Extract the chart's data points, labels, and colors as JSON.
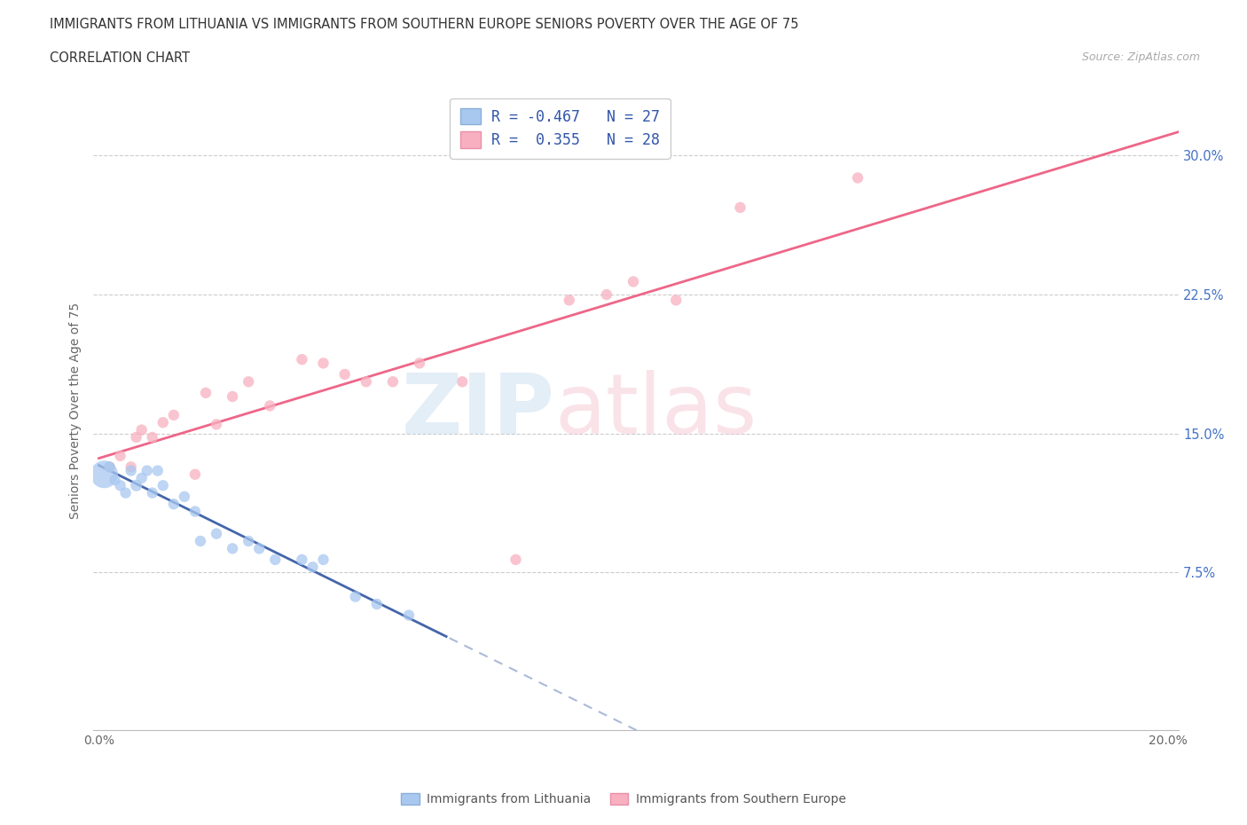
{
  "title": "IMMIGRANTS FROM LITHUANIA VS IMMIGRANTS FROM SOUTHERN EUROPE SENIORS POVERTY OVER THE AGE OF 75",
  "subtitle": "CORRELATION CHART",
  "source": "Source: ZipAtlas.com",
  "ylabel": "Seniors Poverty Over the Age of 75",
  "xlim": [
    -0.001,
    0.202
  ],
  "ylim": [
    -0.01,
    0.335
  ],
  "R1": -0.467,
  "N1": 27,
  "R2": 0.355,
  "N2": 28,
  "color1": "#a8c8f0",
  "color2": "#f8b0c0",
  "trend1_color": "#4466aa",
  "trend2_color": "#ee6688",
  "label1": "Immigrants from Lithuania",
  "label2": "Immigrants from Southern Europe",
  "blue_x": [
    0.001,
    0.002,
    0.003,
    0.004,
    0.005,
    0.006,
    0.007,
    0.008,
    0.009,
    0.01,
    0.011,
    0.012,
    0.014,
    0.016,
    0.018,
    0.019,
    0.022,
    0.025,
    0.028,
    0.03,
    0.033,
    0.038,
    0.04,
    0.042,
    0.048,
    0.052,
    0.058
  ],
  "blue_y": [
    0.128,
    0.132,
    0.125,
    0.122,
    0.118,
    0.13,
    0.122,
    0.126,
    0.13,
    0.118,
    0.13,
    0.122,
    0.112,
    0.116,
    0.108,
    0.092,
    0.096,
    0.088,
    0.092,
    0.088,
    0.082,
    0.082,
    0.078,
    0.082,
    0.062,
    0.058,
    0.052
  ],
  "blue_sizes": [
    500,
    80,
    80,
    80,
    80,
    80,
    90,
    80,
    80,
    80,
    80,
    80,
    80,
    80,
    80,
    80,
    80,
    80,
    80,
    80,
    80,
    80,
    80,
    80,
    80,
    80,
    80
  ],
  "pink_x": [
    0.002,
    0.004,
    0.006,
    0.007,
    0.008,
    0.01,
    0.012,
    0.014,
    0.018,
    0.02,
    0.022,
    0.025,
    0.028,
    0.032,
    0.038,
    0.042,
    0.046,
    0.05,
    0.055,
    0.06,
    0.068,
    0.078,
    0.088,
    0.095,
    0.1,
    0.108,
    0.12,
    0.142
  ],
  "pink_y": [
    0.132,
    0.138,
    0.132,
    0.148,
    0.152,
    0.148,
    0.156,
    0.16,
    0.128,
    0.172,
    0.155,
    0.17,
    0.178,
    0.165,
    0.19,
    0.188,
    0.182,
    0.178,
    0.178,
    0.188,
    0.178,
    0.082,
    0.222,
    0.225,
    0.232,
    0.222,
    0.272,
    0.288
  ],
  "pink_sizes": [
    80,
    80,
    80,
    80,
    80,
    80,
    80,
    80,
    80,
    80,
    80,
    80,
    80,
    80,
    80,
    80,
    80,
    80,
    80,
    80,
    80,
    80,
    80,
    80,
    80,
    80,
    80,
    80
  ],
  "ytick_vals": [
    0.075,
    0.15,
    0.225,
    0.3
  ],
  "ytick_labels": [
    "7.5%",
    "15.0%",
    "22.5%",
    "30.0%"
  ],
  "xtick_vals": [
    0.0,
    0.05,
    0.1,
    0.15,
    0.2
  ],
  "xtick_labels": [
    "0.0%",
    "",
    "",
    "",
    "20.0%"
  ]
}
